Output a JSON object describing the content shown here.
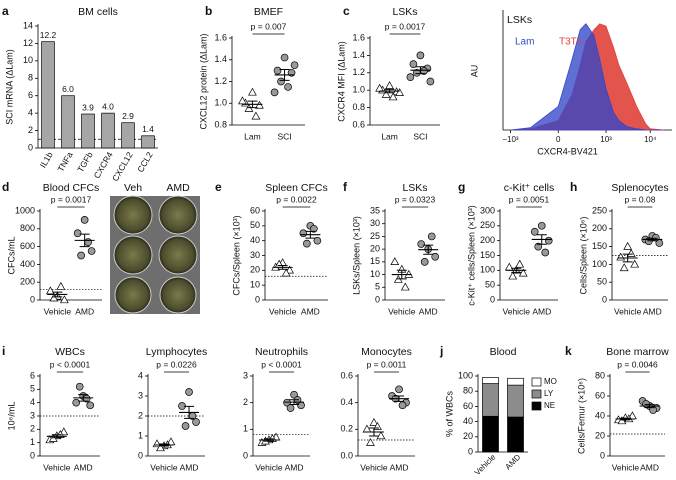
{
  "chart_data": [
    {
      "type": "bar",
      "panel_label": "a",
      "title": "BM cells",
      "ylabel": "SCI mRNA (ΔLam)",
      "categories": [
        "IL1b",
        "TNFa",
        "TGFb",
        "CXCR4",
        "CXCL12",
        "CCL2"
      ],
      "values": [
        12.2,
        6.0,
        3.9,
        4.0,
        2.9,
        1.4
      ],
      "value_labels": [
        "12.2",
        "6.0",
        "3.9",
        "4.0",
        "2.9",
        "1.4"
      ],
      "color": "#a6a6a6",
      "ylim": [
        0,
        14
      ],
      "yticks": [
        0,
        2,
        4,
        6,
        8,
        10,
        12,
        14
      ],
      "reference_line": 1
    },
    {
      "type": "dot",
      "panel_label": "b",
      "title": "BMEF",
      "ylabel": "CXCL12 protein (ΔLam)",
      "p_label": "p = 0.007",
      "ylim": [
        0.8,
        1.6
      ],
      "yticks": [
        {
          "value": 0.8,
          "label": "0.8"
        },
        {
          "value": 1.0,
          "label": "1.0"
        },
        1.2,
        1.4,
        1.6
      ],
      "groups": [
        {
          "name": "Lam",
          "marker": "triangle",
          "color": "#ffffff",
          "values": [
            1.1,
            1.0,
            0.98,
            0.95,
            0.88,
            1.02
          ],
          "mean": 0.99,
          "sem": 0.03
        },
        {
          "name": "SCI",
          "marker": "circle",
          "color": "#999999",
          "values": [
            1.42,
            1.3,
            1.28,
            1.2,
            1.15,
            1.1,
            1.35
          ],
          "mean": 1.26,
          "sem": 0.05
        }
      ]
    },
    {
      "type": "dot",
      "panel_label": "c",
      "title": "LSKs",
      "ylabel": "CXCR4 MFI (ΔLam)",
      "p_label": "p = 0.0017",
      "ylim": [
        0.6,
        1.6
      ],
      "yticks": [
        0.6,
        0.8,
        {
          "value": 1.0,
          "label": "1.0"
        },
        1.2,
        1.4,
        1.6
      ],
      "groups": [
        {
          "name": "Lam",
          "marker": "triangle",
          "color": "#ffffff",
          "values": [
            1.05,
            1.0,
            0.98,
            0.95,
            0.92,
            1.02,
            0.97
          ],
          "mean": 0.99,
          "sem": 0.02
        },
        {
          "name": "SCI",
          "marker": "circle",
          "color": "#999999",
          "values": [
            1.4,
            1.3,
            1.25,
            1.2,
            1.22,
            1.15,
            1.1
          ],
          "mean": 1.23,
          "sem": 0.04
        }
      ]
    },
    {
      "type": "histogram",
      "title": "LSKs",
      "ylabel": "AU",
      "xlabel": "CXCR4-BV421",
      "x": [
        -1000,
        -300,
        0,
        100,
        200,
        300,
        500,
        700,
        1000,
        1500,
        2000,
        3000,
        5000,
        8000,
        10000,
        20000
      ],
      "xlim": [
        -1500,
        30000
      ],
      "ylim": [
        0,
        100
      ],
      "xticks": [
        {
          "value": -1000,
          "label": "−10³"
        },
        0,
        {
          "value": 1000,
          "label": "10³"
        },
        {
          "value": 10000,
          "label": "10⁴"
        }
      ],
      "series": [
        {
          "name": "T3Tx",
          "color": "#e0413a",
          "values": [
            0,
            1,
            8,
            30,
            55,
            75,
            85,
            90,
            88,
            70,
            55,
            40,
            20,
            5,
            1,
            0
          ]
        },
        {
          "name": "Lam",
          "color": "#3347c8",
          "values": [
            0,
            2,
            20,
            60,
            85,
            90,
            80,
            60,
            35,
            15,
            8,
            3,
            1,
            0,
            0,
            0
          ]
        }
      ]
    },
    {
      "type": "dot",
      "panel_label": "d",
      "title": "Blood CFCs",
      "ylabel": "CFCs/mL",
      "p_label": "p = 0.0017",
      "image_labels": [
        "Veh",
        "AMD"
      ],
      "ylim": [
        0,
        1000
      ],
      "yticks": [
        0,
        200,
        400,
        600,
        800,
        1000
      ],
      "reference_line": 120,
      "groups": [
        {
          "name": "Vehicle",
          "marker": "triangle",
          "color": "#ffffff",
          "values": [
            40,
            100,
            0,
            20,
            150
          ],
          "mean": 62,
          "sem": 27
        },
        {
          "name": "AMD",
          "marker": "circle",
          "color": "#999999",
          "values": [
            900,
            750,
            550,
            500,
            650
          ],
          "mean": 670,
          "sem": 70
        }
      ]
    },
    {
      "type": "dot",
      "panel_label": "e",
      "title": "Spleen CFCs",
      "ylabel": "CFCs/Spleen (×10³)",
      "p_label": "p = 0.0022",
      "ylim": [
        0,
        60
      ],
      "yticks": [
        0,
        10,
        20,
        30,
        40,
        50,
        60
      ],
      "reference_line": 16,
      "groups": [
        {
          "name": "Vehicle",
          "marker": "triangle",
          "color": "#ffffff",
          "values": [
            25,
            22,
            20,
            24,
            18
          ],
          "mean": 22,
          "sem": 1.3
        },
        {
          "name": "AMD",
          "marker": "circle",
          "color": "#999999",
          "values": [
            50,
            45,
            40,
            38,
            48
          ],
          "mean": 44,
          "sem": 2.3
        }
      ]
    },
    {
      "type": "dot",
      "panel_label": "f",
      "title": "LSKs",
      "ylabel": "LSKs/Spleen (×10³)",
      "p_label": "p = 0.0323",
      "ylim": [
        0,
        35
      ],
      "yticks": [
        0,
        5,
        10,
        15,
        20,
        25,
        30,
        35
      ],
      "groups": [
        {
          "name": "Vehicle",
          "marker": "triangle",
          "color": "#ffffff",
          "values": [
            12,
            15,
            10,
            8,
            5
          ],
          "mean": 10,
          "sem": 1.7
        },
        {
          "name": "AMD",
          "marker": "circle",
          "color": "#999999",
          "values": [
            20,
            22,
            17,
            15,
            25
          ],
          "mean": 19.8,
          "sem": 1.8
        }
      ]
    },
    {
      "type": "dot",
      "panel_label": "g",
      "title": "c-Kit⁺ cells",
      "ylabel": "c-Kit⁺ cells/Spleen (×10³)",
      "p_label": "p = 0.0051",
      "ylim": [
        0,
        300
      ],
      "yticks": [
        0,
        50,
        100,
        150,
        200,
        250,
        300
      ],
      "groups": [
        {
          "name": "Vehicle",
          "marker": "triangle",
          "color": "#ffffff",
          "values": [
            100,
            110,
            90,
            80,
            120
          ],
          "mean": 100,
          "sem": 7
        },
        {
          "name": "AMD",
          "marker": "circle",
          "color": "#999999",
          "values": [
            250,
            230,
            200,
            180,
            160
          ],
          "mean": 204,
          "sem": 16
        }
      ]
    },
    {
      "type": "dot",
      "panel_label": "h",
      "title": "Splenocytes",
      "ylabel": "Cells/Spleen (×10⁶)",
      "p_label": "p = 0.08",
      "ylim": [
        0,
        250
      ],
      "yticks": [
        0,
        50,
        100,
        150,
        200,
        250
      ],
      "reference_line": 125,
      "groups": [
        {
          "name": "Vehicle",
          "marker": "triangle",
          "color": "#ffffff",
          "values": [
            150,
            120,
            100,
            90,
            130
          ],
          "mean": 118,
          "sem": 11
        },
        {
          "name": "AMD",
          "marker": "circle",
          "color": "#999999",
          "values": [
            180,
            170,
            160,
            165,
            175
          ],
          "mean": 170,
          "sem": 3.5
        }
      ]
    },
    {
      "type": "dot",
      "panel_label": "i",
      "title": "WBCs",
      "ylabel": "10⁶/mL",
      "p_label": "p < 0.0001",
      "ylim": [
        0,
        6
      ],
      "yticks": [
        0,
        1,
        2,
        3,
        4,
        5,
        6
      ],
      "reference_line": 3,
      "groups": [
        {
          "name": "Vehicle",
          "marker": "triangle",
          "color": "#ffffff",
          "values": [
            1.5,
            1.2,
            1.8,
            1.3,
            1.6
          ],
          "mean": 1.48,
          "sem": 0.11
        },
        {
          "name": "AMD",
          "marker": "circle",
          "color": "#999999",
          "values": [
            4.5,
            4.0,
            3.8,
            5.2,
            4.3
          ],
          "mean": 4.36,
          "sem": 0.24
        }
      ]
    },
    {
      "type": "dot",
      "title": "Lymphocytes",
      "p_label": "p = 0.0226",
      "ylim": [
        0,
        4
      ],
      "yticks": [
        0,
        1,
        2,
        3,
        4
      ],
      "reference_line": 2,
      "groups": [
        {
          "name": "Vehicle",
          "marker": "triangle",
          "color": "#ffffff",
          "values": [
            0.5,
            0.6,
            0.7,
            0.4,
            0.55
          ],
          "mean": 0.55,
          "sem": 0.05
        },
        {
          "name": "AMD",
          "marker": "circle",
          "color": "#999999",
          "values": [
            3.2,
            2.5,
            1.7,
            1.5,
            2.0
          ],
          "mean": 2.18,
          "sem": 0.3
        }
      ]
    },
    {
      "type": "dot",
      "title": "Neutrophils",
      "p_label": "p < 0.0001",
      "ylim": [
        0,
        3
      ],
      "yticks": [
        0,
        1,
        2,
        3
      ],
      "reference_line": 0.8,
      "groups": [
        {
          "name": "Vehicle",
          "marker": "triangle",
          "color": "#ffffff",
          "values": [
            0.6,
            0.5,
            0.7,
            0.55,
            0.65
          ],
          "mean": 0.6,
          "sem": 0.04
        },
        {
          "name": "AMD",
          "marker": "circle",
          "color": "#999999",
          "values": [
            2.3,
            2.0,
            1.9,
            1.8,
            2.1
          ],
          "mean": 2.02,
          "sem": 0.09
        }
      ]
    },
    {
      "type": "dot",
      "title": "Monocytes",
      "p_label": "p = 0.0011",
      "ylim": [
        0,
        0.6
      ],
      "yticks": [
        {
          "value": 0,
          "label": "0.0"
        },
        0.2,
        0.4,
        0.6
      ],
      "reference_line": 0.12,
      "groups": [
        {
          "name": "Vehicle",
          "marker": "triangle",
          "color": "#ffffff",
          "values": [
            0.25,
            0.2,
            0.15,
            0.1,
            0.22
          ],
          "mean": 0.18,
          "sem": 0.03
        },
        {
          "name": "AMD",
          "marker": "circle",
          "color": "#999999",
          "values": [
            0.5,
            0.45,
            0.4,
            0.43,
            0.38
          ],
          "mean": 0.43,
          "sem": 0.02
        }
      ]
    },
    {
      "type": "stacked_bar",
      "panel_label": "j",
      "title": "Blood",
      "ylabel": "% of WBCs",
      "categories": [
        "Vehicle",
        "AMD"
      ],
      "ylim": [
        0,
        100
      ],
      "yticks": [
        0,
        20,
        40,
        60,
        80,
        100
      ],
      "series": [
        {
          "name": "NE",
          "color": "#000000",
          "values": [
            47,
            46
          ]
        },
        {
          "name": "LY",
          "color": "#8c8c8c",
          "values": [
            43,
            42
          ]
        },
        {
          "name": "MO",
          "color": "#ffffff",
          "values": [
            8,
            9
          ]
        }
      ]
    },
    {
      "type": "dot",
      "panel_label": "k",
      "title": "Bone marrow",
      "ylabel": "Cells/Femur (×10⁶)",
      "p_label": "p = 0.0046",
      "ylim": [
        0,
        80
      ],
      "yticks": [
        0,
        20,
        40,
        60,
        80
      ],
      "reference_line": 22,
      "groups": [
        {
          "name": "Vehicle",
          "marker": "triangle",
          "color": "#ffffff",
          "values": [
            38,
            36,
            40,
            35,
            37
          ],
          "mean": 37,
          "sem": 0.9
        },
        {
          "name": "AMD",
          "marker": "circle",
          "color": "#999999",
          "values": [
            50,
            55,
            48,
            52,
            46
          ],
          "mean": 50,
          "sem": 1.6
        }
      ]
    }
  ]
}
